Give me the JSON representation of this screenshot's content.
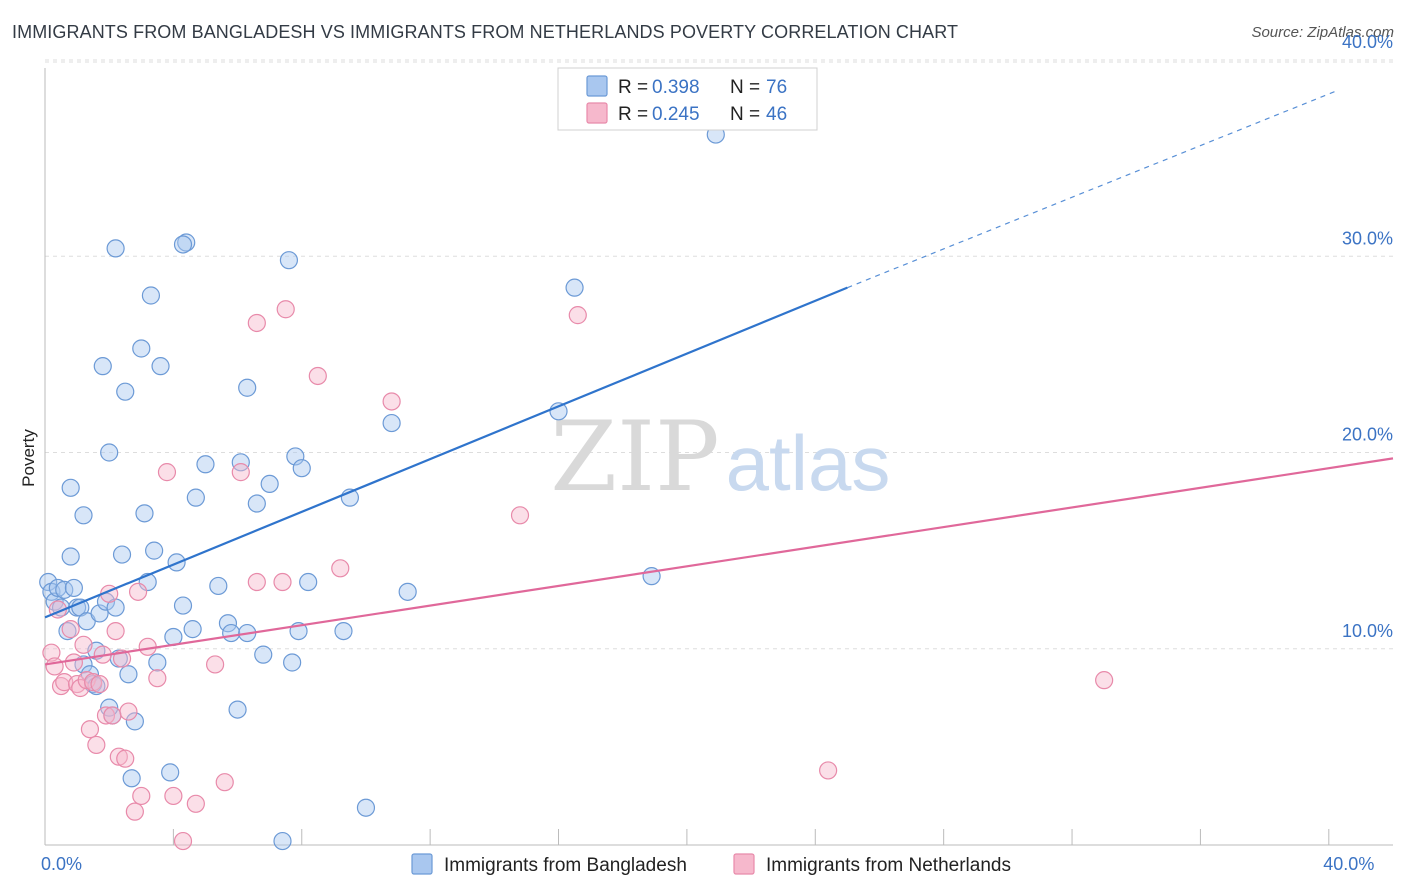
{
  "title": "IMMIGRANTS FROM BANGLADESH VS IMMIGRANTS FROM NETHERLANDS POVERTY CORRELATION CHART",
  "source": "Source: ZipAtlas.com",
  "watermark": {
    "zip": "ZIP",
    "atlas": "atlas"
  },
  "colors": {
    "blue_fill": "#a9c7ef",
    "blue_stroke": "#6c9ad6",
    "blue_line": "#2f74cc",
    "pink_fill": "#f6b8cc",
    "pink_stroke": "#e88aaa",
    "pink_line": "#e0689a",
    "tick_text": "#3b73c4",
    "grid": "#dddddd"
  },
  "legend": {
    "rows": [
      {
        "r_label": "R = ",
        "r_value": "0.398",
        "n_label": "N = ",
        "n_value": "76"
      },
      {
        "r_label": "R = ",
        "r_value": "0.245",
        "n_label": "N = ",
        "n_value": "46"
      }
    ]
  },
  "chart_data": {
    "type": "scatter",
    "xlabel": "",
    "ylabel": "Poverty",
    "xlim": [
      0,
      42
    ],
    "ylim": [
      0,
      40
    ],
    "x_tick_labels": [
      {
        "value": 0,
        "label": "0.0%"
      },
      {
        "value": 40,
        "label": "40.0%"
      }
    ],
    "y_tick_labels": [
      {
        "value": 10,
        "label": "10.0%"
      },
      {
        "value": 20,
        "label": "20.0%"
      },
      {
        "value": 30,
        "label": "30.0%"
      },
      {
        "value": 40,
        "label": "40.0%"
      }
    ],
    "x_minor_ticks": [
      4,
      8,
      12,
      16,
      20,
      24,
      28,
      32,
      36,
      40
    ],
    "grid": true,
    "legend_position": "top-center",
    "series": [
      {
        "name": "Immigrants from Bangladesh",
        "color": "#a9c7ef",
        "trend": {
          "x0": 0,
          "y0": 11.6,
          "x1": 25,
          "y1": 28.4,
          "dash_to_x": 40.2,
          "dash_to_y": 38.4
        },
        "points": [
          [
            0.1,
            13.4
          ],
          [
            0.2,
            12.9
          ],
          [
            0.3,
            12.4
          ],
          [
            0.4,
            13.1
          ],
          [
            0.5,
            12.1
          ],
          [
            0.6,
            13.0
          ],
          [
            0.7,
            10.9
          ],
          [
            0.8,
            18.2
          ],
          [
            0.8,
            14.7
          ],
          [
            0.9,
            13.1
          ],
          [
            1.0,
            12.1
          ],
          [
            1.1,
            12.1
          ],
          [
            1.2,
            9.2
          ],
          [
            1.2,
            16.8
          ],
          [
            1.3,
            11.4
          ],
          [
            1.4,
            8.7
          ],
          [
            1.5,
            8.2
          ],
          [
            1.6,
            9.9
          ],
          [
            1.6,
            8.1
          ],
          [
            1.7,
            11.8
          ],
          [
            1.8,
            24.4
          ],
          [
            1.9,
            12.4
          ],
          [
            2.0,
            20.0
          ],
          [
            2.1,
            6.6
          ],
          [
            2.2,
            12.1
          ],
          [
            2.2,
            30.4
          ],
          [
            2.3,
            9.5
          ],
          [
            2.4,
            14.8
          ],
          [
            2.5,
            23.1
          ],
          [
            2.6,
            8.7
          ],
          [
            2.7,
            3.4
          ],
          [
            2.8,
            6.3
          ],
          [
            3.0,
            25.3
          ],
          [
            3.1,
            16.9
          ],
          [
            3.2,
            13.4
          ],
          [
            3.3,
            28.0
          ],
          [
            3.4,
            15.0
          ],
          [
            3.5,
            9.3
          ],
          [
            3.6,
            24.4
          ],
          [
            3.9,
            3.7
          ],
          [
            4.0,
            10.6
          ],
          [
            4.1,
            14.4
          ],
          [
            4.3,
            12.2
          ],
          [
            4.4,
            30.7
          ],
          [
            4.6,
            11.0
          ],
          [
            4.7,
            17.7
          ],
          [
            5.0,
            19.4
          ],
          [
            5.4,
            13.2
          ],
          [
            5.7,
            11.3
          ],
          [
            5.8,
            10.8
          ],
          [
            6.0,
            6.9
          ],
          [
            6.1,
            19.5
          ],
          [
            6.3,
            23.3
          ],
          [
            6.3,
            10.8
          ],
          [
            6.6,
            17.4
          ],
          [
            6.8,
            9.7
          ],
          [
            7.0,
            18.4
          ],
          [
            7.4,
            0.2
          ],
          [
            7.6,
            29.8
          ],
          [
            7.7,
            9.3
          ],
          [
            7.8,
            19.8
          ],
          [
            7.9,
            10.9
          ],
          [
            8.0,
            19.2
          ],
          [
            8.2,
            13.4
          ],
          [
            9.3,
            10.9
          ],
          [
            9.5,
            17.7
          ],
          [
            10.0,
            1.9
          ],
          [
            10.8,
            21.5
          ],
          [
            11.3,
            12.9
          ],
          [
            16.0,
            22.1
          ],
          [
            16.5,
            28.4
          ],
          [
            18.8,
            37.8
          ],
          [
            18.9,
            13.7
          ],
          [
            20.9,
            36.2
          ],
          [
            2.0,
            7.0
          ],
          [
            4.3,
            30.6
          ]
        ]
      },
      {
        "name": "Immigrants from Netherlands",
        "color": "#f6b8cc",
        "trend": {
          "x0": 0,
          "y0": 9.2,
          "x1": 42,
          "y1": 19.7
        },
        "points": [
          [
            0.2,
            9.8
          ],
          [
            0.3,
            9.1
          ],
          [
            0.4,
            12.0
          ],
          [
            0.5,
            8.1
          ],
          [
            0.6,
            8.3
          ],
          [
            0.8,
            11.0
          ],
          [
            0.9,
            9.3
          ],
          [
            1.0,
            8.2
          ],
          [
            1.1,
            8.0
          ],
          [
            1.2,
            10.2
          ],
          [
            1.3,
            8.4
          ],
          [
            1.4,
            5.9
          ],
          [
            1.5,
            8.3
          ],
          [
            1.6,
            5.1
          ],
          [
            1.7,
            8.2
          ],
          [
            1.8,
            9.7
          ],
          [
            1.9,
            6.6
          ],
          [
            2.0,
            12.8
          ],
          [
            2.1,
            6.6
          ],
          [
            2.2,
            10.9
          ],
          [
            2.3,
            4.5
          ],
          [
            2.4,
            9.5
          ],
          [
            2.5,
            4.4
          ],
          [
            2.6,
            6.8
          ],
          [
            2.8,
            1.7
          ],
          [
            2.9,
            12.9
          ],
          [
            3.0,
            2.5
          ],
          [
            3.2,
            10.1
          ],
          [
            3.5,
            8.5
          ],
          [
            3.8,
            19.0
          ],
          [
            4.0,
            2.5
          ],
          [
            4.3,
            0.2
          ],
          [
            4.7,
            2.1
          ],
          [
            5.3,
            9.2
          ],
          [
            5.6,
            3.2
          ],
          [
            6.1,
            19.0
          ],
          [
            6.6,
            26.6
          ],
          [
            6.6,
            13.4
          ],
          [
            7.4,
            13.4
          ],
          [
            7.5,
            27.3
          ],
          [
            8.5,
            23.9
          ],
          [
            9.2,
            14.1
          ],
          [
            10.8,
            22.6
          ],
          [
            14.8,
            16.8
          ],
          [
            16.6,
            27.0
          ],
          [
            24.4,
            3.8
          ]
        ]
      }
    ],
    "extra_points": {
      "series_index": 1,
      "points": [
        [
          33.0,
          8.4
        ]
      ]
    }
  },
  "bottom_legend": [
    {
      "label": "Immigrants from Bangladesh"
    },
    {
      "label": "Immigrants from Netherlands"
    }
  ]
}
